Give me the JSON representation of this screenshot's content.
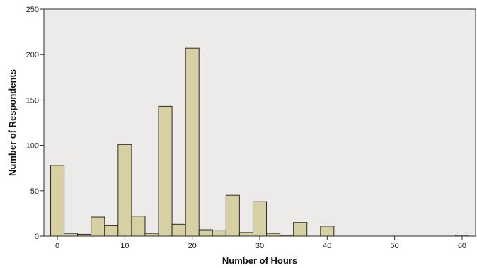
{
  "chart_data": {
    "type": "bar",
    "title": "",
    "xlabel": "Number of Hours",
    "ylabel": "Number of Respondents",
    "xlim": [
      -2,
      62
    ],
    "ylim": [
      0,
      250
    ],
    "x_ticks": [
      0,
      10,
      20,
      30,
      40,
      50,
      60
    ],
    "y_ticks": [
      0,
      50,
      100,
      150,
      200,
      250
    ],
    "bin_width": 2,
    "x": [
      0,
      2,
      4,
      6,
      8,
      10,
      12,
      14,
      16,
      18,
      20,
      22,
      24,
      26,
      28,
      30,
      32,
      34,
      36,
      38,
      40,
      60
    ],
    "values": [
      78,
      3,
      2,
      21,
      12,
      101,
      22,
      3,
      143,
      13,
      207,
      7,
      6,
      45,
      4,
      38,
      3,
      1,
      15,
      0,
      11,
      1
    ],
    "grid": false,
    "colors": {
      "bar_fill": "#d6d0a3",
      "bar_stroke": "#2b2b2b",
      "plot_background": "#ecebe9",
      "axis": "#2b2b2b"
    }
  }
}
